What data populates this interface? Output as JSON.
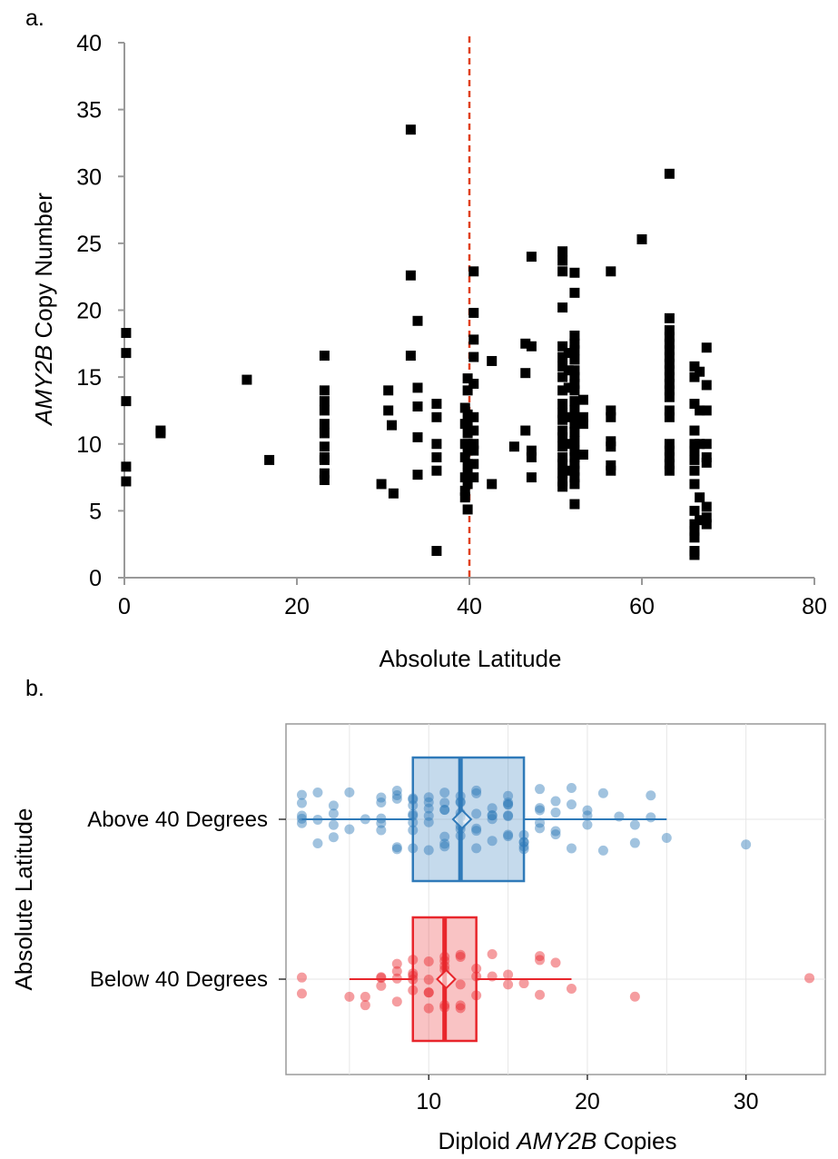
{
  "panels": {
    "a_label": "a.",
    "b_label": "b."
  },
  "colors": {
    "scatter_marker": "#000000",
    "threshold_line": "#e0411f",
    "above": "#2f7ab9",
    "below": "#e8262c",
    "axis": "#999999"
  },
  "chart_data": [
    {
      "type": "scatter",
      "marker": "square",
      "xlabel": "Absolute Latitude",
      "ylabel_italic": "AMY2B",
      "ylabel_rest": " Copy Number",
      "xlim": [
        0,
        80
      ],
      "ylim": [
        0,
        40
      ],
      "xticks": [
        "0",
        "20",
        "40",
        "60",
        "80"
      ],
      "yticks": [
        "0",
        "5",
        "10",
        "15",
        "20",
        "25",
        "30",
        "35",
        "40"
      ],
      "reference_line": {
        "x": 40,
        "style": "dashed"
      },
      "points": [
        [
          0.2,
          18.3
        ],
        [
          0.2,
          16.8
        ],
        [
          0.2,
          13.2
        ],
        [
          0.2,
          8.3
        ],
        [
          0.2,
          7.2
        ],
        [
          4.2,
          11
        ],
        [
          4.2,
          10.8
        ],
        [
          14.2,
          14.8
        ],
        [
          16.8,
          8.8
        ],
        [
          23.2,
          16.6
        ],
        [
          23.2,
          14
        ],
        [
          23.2,
          13.2
        ],
        [
          23.2,
          12.5
        ],
        [
          23.2,
          11.5
        ],
        [
          23.2,
          10.8
        ],
        [
          23.2,
          9.8
        ],
        [
          23.2,
          9
        ],
        [
          23.2,
          8.8
        ],
        [
          23.2,
          7.8
        ],
        [
          23.2,
          7.3
        ],
        [
          29.8,
          7
        ],
        [
          30.6,
          14
        ],
        [
          30.6,
          12.5
        ],
        [
          31,
          11.4
        ],
        [
          31.2,
          6.3
        ],
        [
          33.2,
          33.5
        ],
        [
          33.2,
          22.6
        ],
        [
          33.2,
          16.6
        ],
        [
          34,
          19.2
        ],
        [
          34,
          14.2
        ],
        [
          34,
          12.8
        ],
        [
          34,
          10.5
        ],
        [
          34,
          7.7
        ],
        [
          36.2,
          13
        ],
        [
          36.2,
          12
        ],
        [
          36.2,
          10
        ],
        [
          36.2,
          9
        ],
        [
          36.2,
          8
        ],
        [
          36.2,
          2
        ],
        [
          39.5,
          12.7
        ],
        [
          39.5,
          11.5
        ],
        [
          39.5,
          10
        ],
        [
          39.5,
          9
        ],
        [
          39.5,
          7.5
        ],
        [
          39.5,
          6.5
        ],
        [
          39.5,
          6
        ],
        [
          39.8,
          14.9
        ],
        [
          39.8,
          14
        ],
        [
          39.8,
          12.2
        ],
        [
          39.8,
          11.5
        ],
        [
          39.8,
          10.8
        ],
        [
          39.8,
          10
        ],
        [
          39.8,
          9.5
        ],
        [
          39.8,
          8.5
        ],
        [
          39.8,
          7.8
        ],
        [
          39.8,
          7
        ],
        [
          39.8,
          5.1
        ],
        [
          40.5,
          22.9
        ],
        [
          40.5,
          19.8
        ],
        [
          40.5,
          17.8
        ],
        [
          40.5,
          16.5
        ],
        [
          40.5,
          14.5
        ],
        [
          40.5,
          12
        ],
        [
          40.5,
          11
        ],
        [
          40.5,
          10
        ],
        [
          40.5,
          9.5
        ],
        [
          40.5,
          8.5
        ],
        [
          40.5,
          7.5
        ],
        [
          42.6,
          16.2
        ],
        [
          42.6,
          7
        ],
        [
          45.2,
          9.8
        ],
        [
          46.5,
          17.5
        ],
        [
          46.5,
          15.3
        ],
        [
          46.5,
          11
        ],
        [
          47.2,
          24
        ],
        [
          47.2,
          17.3
        ],
        [
          47.2,
          9.5
        ],
        [
          47.2,
          9
        ],
        [
          47.2,
          7.5
        ],
        [
          50.8,
          24.4
        ],
        [
          50.8,
          23.7
        ],
        [
          50.8,
          22.9
        ],
        [
          50.8,
          20.2
        ],
        [
          50.8,
          17.3
        ],
        [
          50.8,
          16.5
        ],
        [
          50.8,
          15.8
        ],
        [
          50.8,
          15
        ],
        [
          50.8,
          14
        ],
        [
          50.8,
          13
        ],
        [
          50.8,
          12.3
        ],
        [
          50.8,
          11.8
        ],
        [
          50.8,
          11
        ],
        [
          50.8,
          10.5
        ],
        [
          50.8,
          9.8
        ],
        [
          50.8,
          9
        ],
        [
          50.8,
          8.5
        ],
        [
          50.8,
          7.8
        ],
        [
          50.8,
          7.2
        ],
        [
          50.8,
          6.8
        ],
        [
          51.5,
          16.8
        ],
        [
          51.5,
          15.5
        ],
        [
          51.5,
          14.2
        ],
        [
          51.5,
          12
        ],
        [
          51.5,
          10
        ],
        [
          51.5,
          8
        ],
        [
          52.2,
          22.8
        ],
        [
          52.2,
          21.3
        ],
        [
          52.2,
          18.1
        ],
        [
          52.2,
          17.5
        ],
        [
          52.2,
          17
        ],
        [
          52.2,
          16.3
        ],
        [
          52.2,
          15.5
        ],
        [
          52.2,
          15
        ],
        [
          52.2,
          14.5
        ],
        [
          52.2,
          14
        ],
        [
          52.2,
          13.2
        ],
        [
          52.2,
          12.5
        ],
        [
          52.2,
          12
        ],
        [
          52.2,
          11.5
        ],
        [
          52.2,
          10.9
        ],
        [
          52.2,
          10.2
        ],
        [
          52.2,
          9.5
        ],
        [
          52.2,
          9
        ],
        [
          52.2,
          8.5
        ],
        [
          52.2,
          8
        ],
        [
          52.2,
          7.5
        ],
        [
          52.2,
          7
        ],
        [
          52.2,
          5.5
        ],
        [
          53.2,
          13.3
        ],
        [
          53.2,
          12
        ],
        [
          53.2,
          11.5
        ],
        [
          53.2,
          9.2
        ],
        [
          56.4,
          22.9
        ],
        [
          56.4,
          12.5
        ],
        [
          56.4,
          12
        ],
        [
          56.4,
          10.2
        ],
        [
          56.4,
          9.8
        ],
        [
          56.4,
          8.4
        ],
        [
          56.4,
          8
        ],
        [
          60,
          25.3
        ],
        [
          63.2,
          30.2
        ],
        [
          63.2,
          19.4
        ],
        [
          63.2,
          18.5
        ],
        [
          63.2,
          18
        ],
        [
          63.2,
          17.5
        ],
        [
          63.2,
          17
        ],
        [
          63.2,
          16.5
        ],
        [
          63.2,
          16
        ],
        [
          63.2,
          15.5
        ],
        [
          63.2,
          15
        ],
        [
          63.2,
          14.5
        ],
        [
          63.2,
          14
        ],
        [
          63.2,
          13.5
        ],
        [
          63.2,
          12.5
        ],
        [
          63.2,
          12
        ],
        [
          63.2,
          10
        ],
        [
          63.2,
          9.5
        ],
        [
          63.2,
          9
        ],
        [
          63.2,
          8.5
        ],
        [
          63.2,
          8
        ],
        [
          66.1,
          15.8
        ],
        [
          66.1,
          15
        ],
        [
          66.1,
          13
        ],
        [
          66.1,
          11
        ],
        [
          66.1,
          10
        ],
        [
          66.1,
          9.5
        ],
        [
          66.1,
          8.8
        ],
        [
          66.1,
          8
        ],
        [
          66.1,
          7
        ],
        [
          66.1,
          5
        ],
        [
          66.1,
          4
        ],
        [
          66.1,
          3.5
        ],
        [
          66.1,
          3
        ],
        [
          66.1,
          2
        ],
        [
          66.1,
          1.7
        ],
        [
          66.7,
          15.4
        ],
        [
          66.7,
          12.5
        ],
        [
          66.7,
          10
        ],
        [
          66.7,
          6
        ],
        [
          66.7,
          4.3
        ],
        [
          67.5,
          17.2
        ],
        [
          67.5,
          14.4
        ],
        [
          67.5,
          12.5
        ],
        [
          67.5,
          10
        ],
        [
          67.5,
          9
        ],
        [
          67.5,
          8.6
        ],
        [
          67.5,
          5.3
        ],
        [
          67.5,
          4.5
        ],
        [
          67.5,
          4
        ]
      ]
    },
    {
      "type": "boxplot",
      "orientation": "horizontal",
      "ylabel": "Absolute Latitude",
      "xlabel_pre": "Diploid ",
      "xlabel_italic": "AMY2B",
      "xlabel_post": " Copies",
      "xlim": [
        1,
        35
      ],
      "xticks": [
        "10",
        "20",
        "30"
      ],
      "categories": [
        "Above 40 Degrees",
        "Below 40 Degrees"
      ],
      "series": [
        {
          "name": "Above 40 Degrees",
          "color": "#2f7ab9",
          "whisker_low": 2,
          "q1": 9,
          "median": 12,
          "mean": 12.1,
          "q3": 16,
          "whisker_high": 25,
          "points": [
            2,
            2,
            2,
            2,
            2,
            3,
            3,
            3,
            4,
            4,
            4,
            4,
            5,
            5,
            6,
            7,
            7,
            7,
            7,
            7,
            8,
            8,
            8,
            8,
            8,
            9,
            9,
            9,
            9,
            9,
            9,
            9,
            9,
            10,
            10,
            10,
            10,
            10,
            10,
            11,
            11,
            11,
            11,
            11,
            11,
            11,
            12,
            12,
            12,
            12,
            12,
            12,
            12,
            12,
            12,
            13,
            13,
            13,
            13,
            13,
            13,
            14,
            14,
            14,
            14,
            14,
            15,
            15,
            15,
            15,
            15,
            15,
            15,
            15,
            16,
            16,
            16,
            16,
            16,
            17,
            17,
            17,
            17,
            17,
            18,
            18,
            18,
            18,
            19,
            19,
            19,
            20,
            20,
            20,
            21,
            21,
            22,
            23,
            23,
            24,
            24,
            25,
            30
          ]
        },
        {
          "name": "Below 40 Degrees",
          "color": "#e8262c",
          "whisker_low": 5,
          "q1": 9,
          "median": 11,
          "mean": 11.1,
          "q3": 13,
          "whisker_high": 19,
          "points": [
            2,
            2,
            5,
            6,
            6,
            7,
            7,
            7,
            8,
            8,
            8,
            8,
            9,
            9,
            9,
            9,
            9,
            10,
            10,
            10,
            10,
            10,
            11,
            11,
            11,
            11,
            11,
            11,
            12,
            12,
            12,
            12,
            12,
            13,
            13,
            13,
            14,
            14,
            15,
            15,
            16,
            17,
            17,
            17,
            18,
            19,
            23,
            34
          ]
        }
      ]
    }
  ]
}
